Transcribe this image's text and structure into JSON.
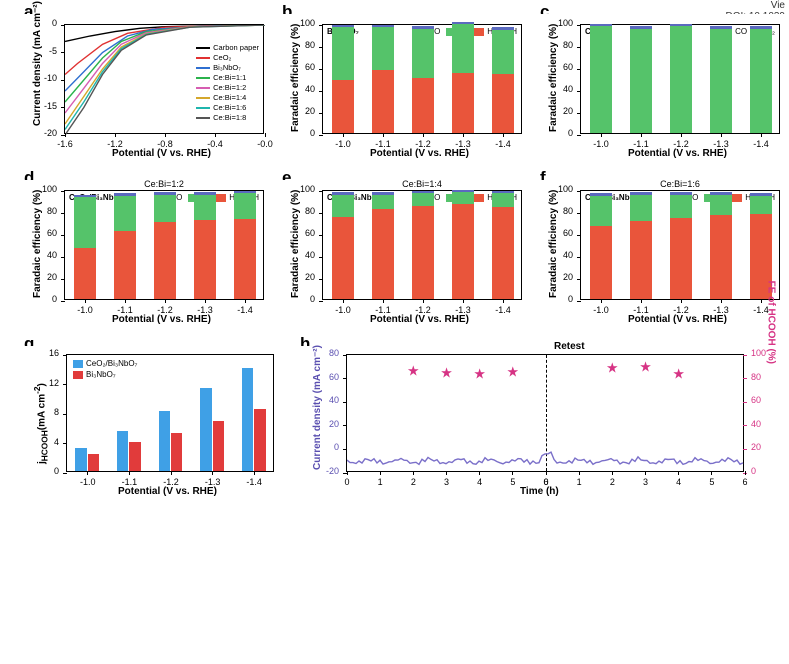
{
  "corner": {
    "line1": "Vie",
    "line2": "DOI: 10.1039"
  },
  "colors": {
    "co": "#5b6abf",
    "h2": "#55c36a",
    "hcooh": "#e9553b",
    "bar_blue": "#3fa0e6",
    "bar_red": "#e13b3b",
    "trace": "#7a6fc9",
    "star": "#d63384",
    "axis": "#000000"
  },
  "panel_labels": {
    "a": "a",
    "b": "b",
    "c": "c",
    "d": "d",
    "e": "e",
    "f": "f",
    "g": "g",
    "h": "h"
  },
  "fe_axis": {
    "ylabel": "Faradaic efficiency (%)",
    "xlabel": "Potential (V vs. RHE)",
    "ymin": 0,
    "ymax": 100,
    "ystep": 20,
    "categories": [
      "-1.0",
      "-1.1",
      "-1.2",
      "-1.3",
      "-1.4"
    ]
  },
  "fe_legend_full": {
    "items": [
      {
        "label": "CO",
        "key": "co"
      },
      {
        "label": "H₂",
        "key": "h2"
      },
      {
        "label": "HCOOH",
        "key": "hcooh"
      }
    ]
  },
  "fe_legend_ceo": {
    "items": [
      {
        "label": "CO",
        "key": "co"
      },
      {
        "label": "H₂",
        "key": "h2"
      }
    ]
  },
  "panel_a": {
    "ylabel": "Current density (mA cm⁻²)",
    "xlabel": "Potential (V vs. RHE)",
    "xmin": -1.6,
    "xmax": 0.0,
    "xstep": 0.4,
    "ymin": -20,
    "ymax": 0,
    "ystep": 5,
    "legend": [
      {
        "label": "Carbon paper",
        "color": "#000000"
      },
      {
        "label": "CeO₂",
        "color": "#e03131"
      },
      {
        "label": "Bi₃NbO₇",
        "color": "#2f6fd0"
      },
      {
        "label": "Ce:Bi=1:1",
        "color": "#2bb24c"
      },
      {
        "label": "Ce:Bi=1:2",
        "color": "#d65db1"
      },
      {
        "label": "Ce:Bi=1:4",
        "color": "#d4a72c"
      },
      {
        "label": "Ce:Bi=1:6",
        "color": "#1fb5ad"
      },
      {
        "label": "Ce:Bi=1:8",
        "color": "#555555"
      }
    ],
    "series": [
      {
        "color": "#000000",
        "pts": [
          [
            -1.6,
            -3
          ],
          [
            -1.4,
            -2
          ],
          [
            -1.2,
            -1.2
          ],
          [
            -1.0,
            -0.6
          ],
          [
            -0.8,
            -0.3
          ],
          [
            -0.4,
            -0.1
          ],
          [
            0.0,
            0
          ]
        ]
      },
      {
        "color": "#e03131",
        "pts": [
          [
            -1.6,
            -9
          ],
          [
            -1.5,
            -7
          ],
          [
            -1.3,
            -3.5
          ],
          [
            -1.1,
            -1.5
          ],
          [
            -0.8,
            -0.4
          ],
          [
            -0.4,
            -0.1
          ],
          [
            0.0,
            0
          ]
        ]
      },
      {
        "color": "#2f6fd0",
        "pts": [
          [
            -1.6,
            -12
          ],
          [
            -1.45,
            -8.5
          ],
          [
            -1.3,
            -5
          ],
          [
            -1.1,
            -2
          ],
          [
            -0.9,
            -0.8
          ],
          [
            -0.5,
            -0.2
          ],
          [
            0.0,
            0
          ]
        ]
      },
      {
        "color": "#2bb24c",
        "pts": [
          [
            -1.6,
            -14
          ],
          [
            -1.45,
            -10
          ],
          [
            -1.3,
            -6
          ],
          [
            -1.15,
            -3
          ],
          [
            -0.95,
            -1.2
          ],
          [
            -0.6,
            -0.3
          ],
          [
            0.0,
            0
          ]
        ]
      },
      {
        "color": "#d65db1",
        "pts": [
          [
            -1.6,
            -16
          ],
          [
            -1.45,
            -11.5
          ],
          [
            -1.3,
            -7
          ],
          [
            -1.15,
            -3.5
          ],
          [
            -0.95,
            -1.4
          ],
          [
            -0.6,
            -0.3
          ],
          [
            0.0,
            0
          ]
        ]
      },
      {
        "color": "#d4a72c",
        "pts": [
          [
            -1.6,
            -18
          ],
          [
            -1.45,
            -13
          ],
          [
            -1.3,
            -8
          ],
          [
            -1.15,
            -4
          ],
          [
            -0.95,
            -1.6
          ],
          [
            -0.6,
            -0.35
          ],
          [
            0.0,
            0
          ]
        ]
      },
      {
        "color": "#1fb5ad",
        "pts": [
          [
            -1.6,
            -19
          ],
          [
            -1.45,
            -14
          ],
          [
            -1.3,
            -8.5
          ],
          [
            -1.15,
            -4.3
          ],
          [
            -0.95,
            -1.7
          ],
          [
            -0.6,
            -0.4
          ],
          [
            0.0,
            0
          ]
        ]
      },
      {
        "color": "#555555",
        "pts": [
          [
            -1.6,
            -20
          ],
          [
            -1.45,
            -15
          ],
          [
            -1.3,
            -9
          ],
          [
            -1.15,
            -4.6
          ],
          [
            -0.95,
            -1.8
          ],
          [
            -0.6,
            -0.4
          ],
          [
            0.0,
            0
          ]
        ]
      }
    ]
  },
  "panel_b": {
    "title": "",
    "tag": "Bi₃NbO₇",
    "kind": "full",
    "data": [
      {
        "co": 2,
        "h2": 48,
        "hcooh": 48
      },
      {
        "co": 2,
        "h2": 39,
        "hcooh": 57
      },
      {
        "co": 2,
        "h2": 45,
        "hcooh": 50
      },
      {
        "co": 2,
        "h2": 44,
        "hcooh": 55
      },
      {
        "co": 2,
        "h2": 40,
        "hcooh": 54
      }
    ]
  },
  "panel_c": {
    "title": "",
    "tag": "CeO₂",
    "kind": "ceo",
    "data": [
      {
        "co": 2,
        "h2": 97
      },
      {
        "co": 2,
        "h2": 95
      },
      {
        "co": 2,
        "h2": 97
      },
      {
        "co": 2,
        "h2": 95
      },
      {
        "co": 2,
        "h2": 95
      }
    ]
  },
  "panel_d": {
    "title": "Ce:Bi=1:2",
    "tag": "CeO₂/Bi₃NbO₇",
    "kind": "full",
    "data": [
      {
        "co": 2,
        "h2": 47,
        "hcooh": 46
      },
      {
        "co": 2,
        "h2": 32,
        "hcooh": 62
      },
      {
        "co": 2,
        "h2": 25,
        "hcooh": 70
      },
      {
        "co": 2,
        "h2": 23,
        "hcooh": 72
      },
      {
        "co": 2,
        "h2": 23,
        "hcooh": 73
      }
    ]
  },
  "panel_e": {
    "title": "Ce:Bi=1:4",
    "tag": "CeO₂/Bi₃NbO₇",
    "kind": "full",
    "data": [
      {
        "co": 2,
        "h2": 20,
        "hcooh": 75
      },
      {
        "co": 2,
        "h2": 13,
        "hcooh": 82
      },
      {
        "co": 2,
        "h2": 11,
        "hcooh": 85
      },
      {
        "co": 2,
        "h2": 11,
        "hcooh": 86
      },
      {
        "co": 2,
        "h2": 12,
        "hcooh": 84
      }
    ]
  },
  "panel_f": {
    "title": "Ce:Bi=1:6",
    "tag": "CeO₂/Bi₃NbO₇",
    "kind": "full",
    "data": [
      {
        "co": 2,
        "h2": 28,
        "hcooh": 66
      },
      {
        "co": 2,
        "h2": 24,
        "hcooh": 71
      },
      {
        "co": 2,
        "h2": 21,
        "hcooh": 74
      },
      {
        "co": 2,
        "h2": 19,
        "hcooh": 76
      },
      {
        "co": 2,
        "h2": 17,
        "hcooh": 77
      }
    ]
  },
  "panel_g": {
    "ylabel": "j_HCOOH (mA cm⁻²)",
    "ylabel_html": "j<sub>HCOOH</sub>(mA cm<sup>-2</sup>)",
    "xlabel": "Potential (V vs. RHE)",
    "ymin": 0,
    "ymax": 16,
    "ystep": 4,
    "categories": [
      "-1.0",
      "-1.1",
      "-1.2",
      "-1.3",
      "-1.4"
    ],
    "legend": [
      {
        "label": "CeO₂/Bi₃NbO₇",
        "key": "bar_blue"
      },
      {
        "label": "Bi₃NbO₇",
        "key": "bar_red"
      }
    ],
    "series": {
      "bar_blue": [
        3.1,
        5.4,
        8.2,
        11.2,
        14.0
      ],
      "bar_red": [
        2.3,
        4.0,
        5.1,
        6.8,
        8.4
      ]
    }
  },
  "panel_h": {
    "ylabel": "Current density (mA cm⁻²)",
    "y2label": "FE of HCOOH (%)",
    "xlabel": "Time (h)",
    "retest": "Retest",
    "ymin": -20,
    "ymax": 80,
    "ystep": 20,
    "y2min": 0,
    "y2max": 100,
    "y2step": 20,
    "segA": {
      "xmin": 0,
      "xmax": 6,
      "xstep": 1
    },
    "segB": {
      "xmin": 0,
      "xmax": 6,
      "xstep": 1
    },
    "current_mean": -10,
    "starsA": [
      {
        "x": 2,
        "fe": 85
      },
      {
        "x": 3,
        "fe": 83
      },
      {
        "x": 4,
        "fe": 82
      },
      {
        "x": 5,
        "fe": 84
      }
    ],
    "starsB": [
      {
        "x": 2,
        "fe": 87
      },
      {
        "x": 3,
        "fe": 88
      },
      {
        "x": 4,
        "fe": 82
      }
    ]
  }
}
